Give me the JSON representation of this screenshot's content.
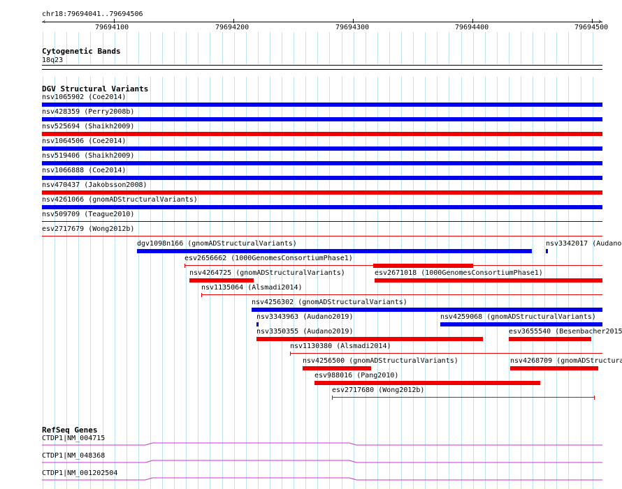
{
  "ruler": {
    "coord_label": "chr18:79694041..79694506",
    "ticks": [
      "79694100",
      "79694200",
      "79694300",
      "79694400",
      "79694500"
    ]
  },
  "cytoband": {
    "title": "Cytogenetic Bands",
    "band": "18q23"
  },
  "dgv": {
    "title": "DGV Structural Variants",
    "full_rows": [
      {
        "label": "nsv1065902 (Coe2014)",
        "color": "#0000ee",
        "style": "thick"
      },
      {
        "label": "nsv428359 (Perry2008b)",
        "color": "#0000ee",
        "style": "thick"
      },
      {
        "label": "nsv525694 (Shaikh2009)",
        "color": "#ee0000",
        "style": "thick"
      },
      {
        "label": "nsv1064506 (Coe2014)",
        "color": "#0000ee",
        "style": "thick"
      },
      {
        "label": "nsv519406 (Shaikh2009)",
        "color": "#0000ee",
        "style": "thick"
      },
      {
        "label": "nsv1066888 (Coe2014)",
        "color": "#0000ee",
        "style": "thick"
      },
      {
        "label": "nsv470437 (Jakobsson2008)",
        "color": "#ee0000",
        "style": "thick"
      },
      {
        "label": "nsv4261066 (gnomADStructuralVariants)",
        "color": "#0000ee",
        "style": "thick"
      },
      {
        "label": "nsv509709 (Teague2010)",
        "color": "#0000ee",
        "style": "thin"
      },
      {
        "label": "esv2717679 (Wong2012b)",
        "color": "#ee0000",
        "style": "thin"
      }
    ],
    "packed": [
      {
        "label": "dgv1098n166 (gnomADStructuralVariants)",
        "color": "#0000ee",
        "style": "thick"
      },
      {
        "label": "nsv3342017 (Audano2",
        "color": "#0000ee",
        "style": "dot"
      },
      {
        "label": "esv2656662 (1000GenomesConsortiumPhase1)",
        "color": "#ee0000",
        "style": "thin"
      },
      {
        "label": "nsv4264725 (gnomADStructuralVariants)",
        "color": "#ee0000",
        "style": "thick"
      },
      {
        "label": "esv2671018 (1000GenomesConsortiumPhase1)",
        "color": "#ee0000",
        "style": "thick"
      },
      {
        "label": "nsv1135064 (Alsmadi2014)",
        "color": "#ee0000",
        "style": "thin"
      },
      {
        "label": "nsv4256302 (gnomADStructuralVariants)",
        "color": "#0000ee",
        "style": "thick"
      },
      {
        "label": "nsv3343963 (Audano2019)",
        "color": "#0000ee",
        "style": "dot"
      },
      {
        "label": "nsv4259068 (gnomADStructuralVariants)",
        "color": "#0000ee",
        "style": "thick"
      },
      {
        "label": "nsv3350355 (Audano2019)",
        "color": "#ee0000",
        "style": "thick"
      },
      {
        "label": "esv3655540 (Besenbacher2015",
        "color": "#ee0000",
        "style": "thick"
      },
      {
        "label": "nsv1130380 (Alsmadi2014)",
        "color": "#ee0000",
        "style": "thin"
      },
      {
        "label": "nsv4256500 (gnomADStructuralVariants)",
        "color": "#ee0000",
        "style": "thick"
      },
      {
        "label": "nsv4268709 (gnomADStructura",
        "color": "#ee0000",
        "style": "thick"
      },
      {
        "label": "esv988016 (Pang2010)",
        "color": "#ee0000",
        "style": "thick"
      },
      {
        "label": "esv2717680 (Wong2012b)",
        "color": "#ee0000",
        "style": "thin"
      }
    ]
  },
  "refseq": {
    "title": "RefSeq Genes",
    "genes": [
      {
        "label": "CTDP1|NM_004715",
        "color": "#cc33cc"
      },
      {
        "label": "CTDP1|NM_048368",
        "color": "#cc33cc"
      },
      {
        "label": "CTDP1|NM_001202504",
        "color": "#cc33cc"
      }
    ]
  }
}
